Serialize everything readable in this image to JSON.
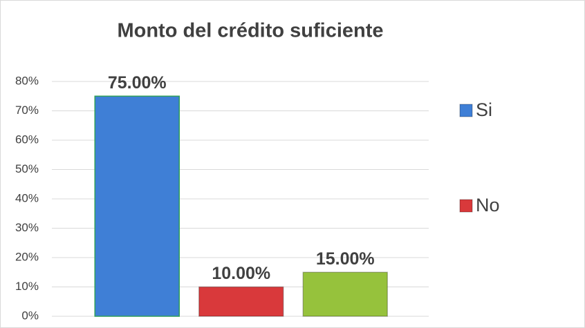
{
  "chart_data": {
    "type": "bar",
    "title": "Monto del crédito suficiente",
    "categories": [
      null,
      null,
      null
    ],
    "values": [
      75,
      10,
      15
    ],
    "value_labels": [
      "75.00%",
      "10.00%",
      "15.00%"
    ],
    "colors": [
      "#3f7fd6",
      "#d9393b",
      "#96c23c"
    ],
    "legend": [
      {
        "name": "Si",
        "color": "#3f7fd6"
      },
      {
        "name": "No",
        "color": "#d9393b"
      }
    ],
    "legend_position": "right",
    "ylim": [
      0,
      80
    ],
    "yticks": [
      {
        "value": 0,
        "label": "0%"
      },
      {
        "value": 10,
        "label": "10%"
      },
      {
        "value": 20,
        "label": "20%"
      },
      {
        "value": 30,
        "label": "30%"
      },
      {
        "value": 40,
        "label": "40%"
      },
      {
        "value": 50,
        "label": "50%"
      },
      {
        "value": 60,
        "label": "60%"
      },
      {
        "value": 70,
        "label": "70%"
      },
      {
        "value": 80,
        "label": "80%"
      }
    ],
    "grid": true
  }
}
